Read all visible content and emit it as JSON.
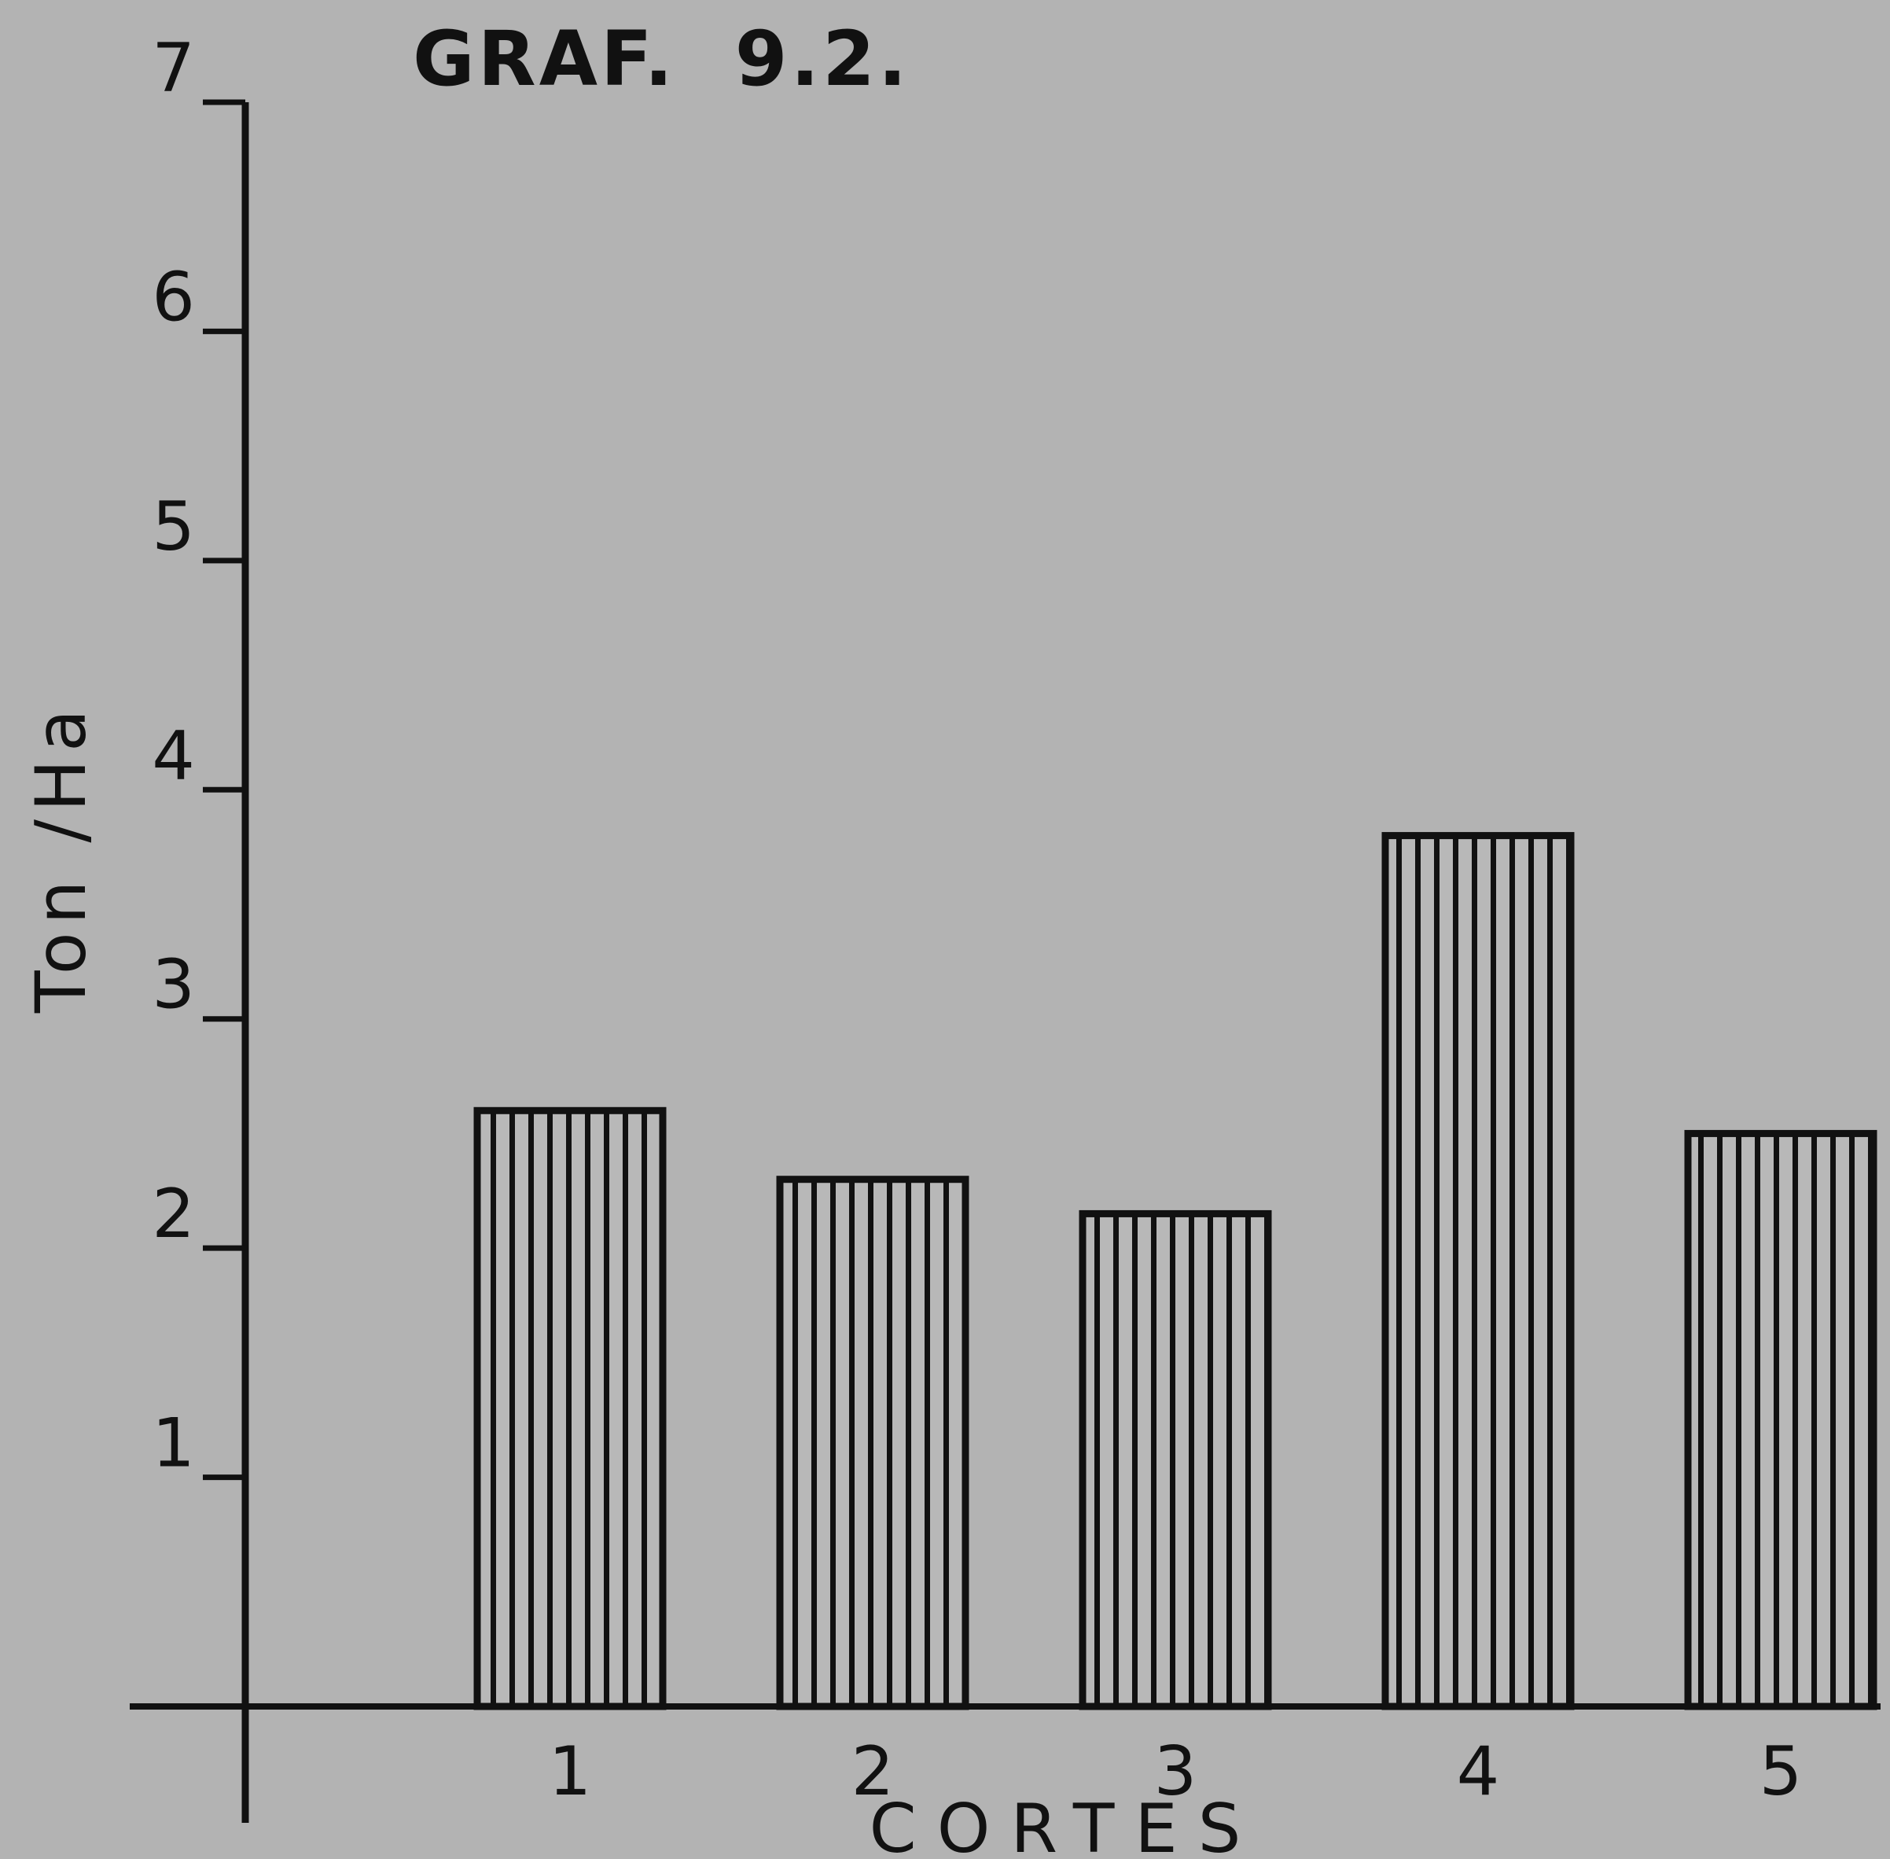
{
  "chart_data": {
    "type": "bar",
    "title": "GRAF.  9.2.",
    "xlabel": "CORTES",
    "ylabel": "Ton /Ha",
    "categories": [
      "1",
      "2",
      "3",
      "4",
      "5"
    ],
    "values": [
      2.6,
      2.3,
      2.15,
      3.8,
      2.5
    ],
    "ylim": [
      0,
      7
    ],
    "yticks": [
      "1",
      "2",
      "3",
      "4",
      "5",
      "6",
      "7"
    ],
    "bar_pattern": "vertical-stripes",
    "grid": false,
    "legend": "none",
    "colors": {
      "background": "#b3b3b3",
      "ink": "#111111"
    }
  }
}
